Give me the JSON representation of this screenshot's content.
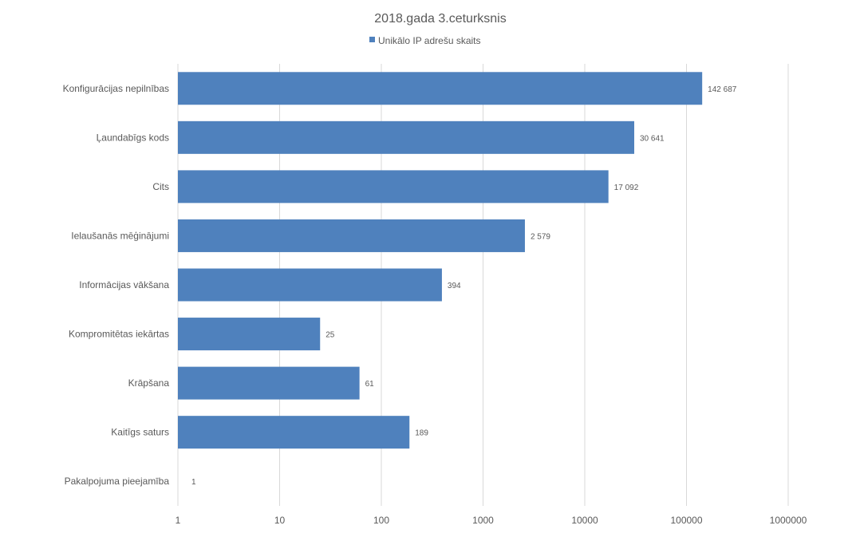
{
  "chart_data": {
    "type": "bar",
    "orientation": "horizontal",
    "title": "2018.gada 3.ceturksnis",
    "legend": {
      "position": "top",
      "entries": [
        "Unikālo IP adrešu skaits"
      ]
    },
    "x_scale": "log",
    "xlim": [
      1,
      1000000
    ],
    "x_ticks": [
      "1",
      "10",
      "100",
      "1000",
      "10000",
      "100000",
      "1000000"
    ],
    "x_tick_values": [
      1,
      10,
      100,
      1000,
      10000,
      100000,
      1000000
    ],
    "grid": true,
    "categories": [
      "Konfigurācijas nepilnības",
      "Ļaundabīgs kods",
      "Cits",
      "Ielaušanās mēģinājumi",
      "Informācijas vākšana",
      "Kompromitētas iekārtas",
      "Krāpšana",
      "Kaitīgs saturs",
      "Pakalpojuma pieejamība"
    ],
    "series": [
      {
        "name": "Unikālo IP adrešu skaits",
        "values": [
          142687,
          30641,
          17092,
          2579,
          394,
          25,
          61,
          189,
          1
        ],
        "labels": [
          "142 687",
          "30 641",
          "17 092",
          "2 579",
          "394",
          "25",
          "61",
          "189",
          "1"
        ],
        "color": "#4f81bd"
      }
    ]
  }
}
